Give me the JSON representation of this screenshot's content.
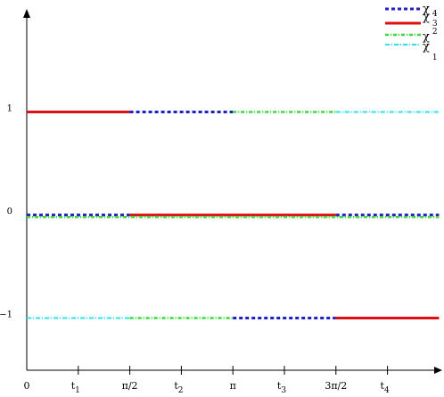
{
  "chart_data": {
    "type": "line",
    "title": "",
    "xlabel": "",
    "ylabel": "",
    "xlim": [
      0,
      7.4
    ],
    "ylim": [
      -1.5,
      1.9
    ],
    "x_ticks": [
      {
        "value": 0,
        "label": "0",
        "sub": ""
      },
      {
        "value": 1,
        "label": "t",
        "sub": "1"
      },
      {
        "value": 2,
        "label": "π/2",
        "sub": ""
      },
      {
        "value": 3,
        "label": "t",
        "sub": "2"
      },
      {
        "value": 4,
        "label": "π",
        "sub": ""
      },
      {
        "value": 5,
        "label": "t",
        "sub": "3"
      },
      {
        "value": 6,
        "label": "3π/2",
        "sub": ""
      },
      {
        "value": 7,
        "label": "t",
        "sub": "4"
      }
    ],
    "y_ticks": [
      {
        "value": 1,
        "label": "1"
      },
      {
        "value": 0,
        "label": "0"
      },
      {
        "value": -1,
        "label": "−1"
      }
    ],
    "legend_position": "top-right",
    "series": [
      {
        "name": "χ",
        "name_sub": "4",
        "color": "#1f1fd0",
        "dash": "4,3",
        "width": 3,
        "segments": [
          {
            "x": [
              2,
              4
            ],
            "y": 1
          },
          {
            "x": [
              0,
              2
            ],
            "y": 0
          },
          {
            "x": [
              6,
              8
            ],
            "y": 0
          },
          {
            "x": [
              4,
              6
            ],
            "y": -1
          }
        ]
      },
      {
        "name": "χ",
        "name_sub": "3",
        "color": "#e01010",
        "dash": "",
        "width": 3,
        "segments": [
          {
            "x": [
              0,
              2
            ],
            "y": 1
          },
          {
            "x": [
              2,
              6
            ],
            "y": 0
          },
          {
            "x": [
              6,
              8
            ],
            "y": -1
          }
        ]
      },
      {
        "name": "χ",
        "name_sub": "2",
        "color": "#30e030",
        "dash": "4,2,1,2",
        "width": 2.5,
        "segments": [
          {
            "x": [
              4,
              6
            ],
            "y": 1
          },
          {
            "x": [
              0,
              8
            ],
            "y": -0.02
          },
          {
            "x": [
              2,
              4
            ],
            "y": -1
          }
        ]
      },
      {
        "name": "χ",
        "name_sub": "1",
        "color": "#20e8f0",
        "dash": "5,2,1,2",
        "width": 2,
        "segments": [
          {
            "x": [
              6,
              8
            ],
            "y": 1
          },
          {
            "x": [
              0,
              2
            ],
            "y": -1
          }
        ]
      }
    ]
  }
}
